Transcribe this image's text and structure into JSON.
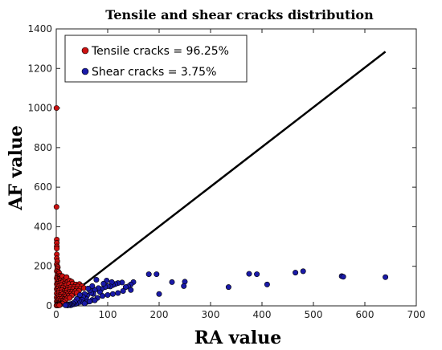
{
  "chart_data": {
    "type": "scatter",
    "title": "Tensile and shear cracks distribution",
    "xlabel": "RA value",
    "ylabel": "AF value",
    "xlim": [
      0,
      700
    ],
    "ylim": [
      0,
      1400
    ],
    "xticks": [
      0,
      100,
      200,
      300,
      400,
      500,
      600,
      700
    ],
    "yticks": [
      0,
      200,
      400,
      600,
      800,
      1000,
      1200,
      1400
    ],
    "legend_position": "top-left",
    "boundary_line": {
      "x": [
        0,
        640
      ],
      "y": [
        0,
        1285
      ],
      "color": "#000000"
    },
    "series": [
      {
        "name": "Tensile cracks = 96.25%",
        "color": "#cc1111",
        "points": [
          [
            0.5,
            1000
          ],
          [
            0.5,
            500
          ],
          [
            1,
            335
          ],
          [
            1,
            318
          ],
          [
            1,
            300
          ],
          [
            1,
            290
          ],
          [
            1,
            260
          ],
          [
            1,
            240
          ],
          [
            2,
            225
          ],
          [
            1,
            210
          ],
          [
            2,
            200
          ],
          [
            3,
            195
          ],
          [
            2,
            185
          ],
          [
            1,
            175
          ],
          [
            4,
            172
          ],
          [
            3,
            160
          ],
          [
            6,
            165
          ],
          [
            2,
            150
          ],
          [
            5,
            148
          ],
          [
            8,
            152
          ],
          [
            1,
            140
          ],
          [
            3,
            135
          ],
          [
            7,
            138
          ],
          [
            10,
            140
          ],
          [
            12,
            150
          ],
          [
            2,
            125
          ],
          [
            5,
            122
          ],
          [
            9,
            128
          ],
          [
            14,
            130
          ],
          [
            18,
            135
          ],
          [
            20,
            145
          ],
          [
            1,
            110
          ],
          [
            4,
            112
          ],
          [
            8,
            115
          ],
          [
            12,
            118
          ],
          [
            16,
            112
          ],
          [
            22,
            120
          ],
          [
            26,
            128
          ],
          [
            30,
            122
          ],
          [
            2,
            98
          ],
          [
            6,
            100
          ],
          [
            10,
            105
          ],
          [
            15,
            100
          ],
          [
            20,
            105
          ],
          [
            25,
            110
          ],
          [
            32,
            112
          ],
          [
            38,
            108
          ],
          [
            45,
            110
          ],
          [
            1,
            85
          ],
          [
            4,
            88
          ],
          [
            9,
            90
          ],
          [
            13,
            92
          ],
          [
            18,
            88
          ],
          [
            23,
            92
          ],
          [
            28,
            95
          ],
          [
            35,
            96
          ],
          [
            42,
            98
          ],
          [
            50,
            100
          ],
          [
            2,
            75
          ],
          [
            6,
            78
          ],
          [
            11,
            80
          ],
          [
            16,
            75
          ],
          [
            21,
            78
          ],
          [
            27,
            82
          ],
          [
            33,
            85
          ],
          [
            40,
            85
          ],
          [
            47,
            88
          ],
          [
            54,
            90
          ],
          [
            1,
            62
          ],
          [
            5,
            65
          ],
          [
            10,
            68
          ],
          [
            15,
            64
          ],
          [
            20,
            66
          ],
          [
            26,
            70
          ],
          [
            31,
            72
          ],
          [
            37,
            74
          ],
          [
            44,
            76
          ],
          [
            3,
            52
          ],
          [
            8,
            55
          ],
          [
            12,
            58
          ],
          [
            17,
            55
          ],
          [
            22,
            58
          ],
          [
            28,
            60
          ],
          [
            34,
            62
          ],
          [
            40,
            65
          ],
          [
            1,
            42
          ],
          [
            5,
            45
          ],
          [
            9,
            46
          ],
          [
            14,
            44
          ],
          [
            19,
            48
          ],
          [
            24,
            50
          ],
          [
            30,
            52
          ],
          [
            2,
            32
          ],
          [
            6,
            35
          ],
          [
            11,
            36
          ],
          [
            16,
            34
          ],
          [
            21,
            38
          ],
          [
            26,
            40
          ],
          [
            1,
            22
          ],
          [
            4,
            24
          ],
          [
            8,
            26
          ],
          [
            13,
            25
          ],
          [
            18,
            28
          ],
          [
            3,
            14
          ],
          [
            7,
            16
          ],
          [
            11,
            15
          ],
          [
            15,
            18
          ],
          [
            2,
            8
          ],
          [
            5,
            9
          ],
          [
            9,
            10
          ],
          [
            12,
            11
          ],
          [
            1,
            4
          ],
          [
            4,
            5
          ],
          [
            7,
            5
          ],
          [
            0.5,
            2
          ],
          [
            3,
            2
          ],
          [
            6,
            3
          ],
          [
            30,
            10
          ],
          [
            35,
            15
          ],
          [
            40,
            20
          ],
          [
            48,
            30
          ],
          [
            55,
            40
          ]
        ]
      },
      {
        "name": "Shear cracks = 3.75%",
        "color": "#1a1aa8",
        "points": [
          [
            640,
            145
          ],
          [
            555,
            150
          ],
          [
            558,
            147
          ],
          [
            480,
            175
          ],
          [
            465,
            168
          ],
          [
            410,
            108
          ],
          [
            390,
            160
          ],
          [
            375,
            162
          ],
          [
            335,
            95
          ],
          [
            250,
            122
          ],
          [
            248,
            100
          ],
          [
            225,
            120
          ],
          [
            200,
            60
          ],
          [
            195,
            160
          ],
          [
            180,
            160
          ],
          [
            150,
            120
          ],
          [
            145,
            108
          ],
          [
            140,
            98
          ],
          [
            135,
            95
          ],
          [
            128,
            118
          ],
          [
            120,
            115
          ],
          [
            115,
            110
          ],
          [
            110,
            105
          ],
          [
            108,
            120
          ],
          [
            105,
            98
          ],
          [
            100,
            100
          ],
          [
            98,
            128
          ],
          [
            95,
            95
          ],
          [
            92,
            112
          ],
          [
            88,
            85
          ],
          [
            85,
            70
          ],
          [
            82,
            90
          ],
          [
            78,
            132
          ],
          [
            75,
            80
          ],
          [
            72,
            60
          ],
          [
            70,
            100
          ],
          [
            68,
            65
          ],
          [
            65,
            78
          ],
          [
            62,
            88
          ],
          [
            60,
            52
          ],
          [
            58,
            35
          ],
          [
            55,
            60
          ],
          [
            52,
            45
          ],
          [
            50,
            30
          ],
          [
            48,
            20
          ],
          [
            46,
            55
          ],
          [
            44,
            25
          ],
          [
            42,
            15
          ],
          [
            40,
            35
          ],
          [
            38,
            10
          ],
          [
            36,
            20
          ],
          [
            34,
            8
          ],
          [
            32,
            12
          ],
          [
            30,
            5
          ],
          [
            28,
            3
          ],
          [
            26,
            8
          ],
          [
            24,
            5
          ],
          [
            22,
            2
          ],
          [
            20,
            6
          ],
          [
            18,
            3
          ],
          [
            60,
            20
          ],
          [
            70,
            30
          ],
          [
            80,
            40
          ],
          [
            90,
            50
          ],
          [
            100,
            55
          ],
          [
            110,
            60
          ],
          [
            120,
            65
          ],
          [
            130,
            75
          ],
          [
            145,
            80
          ],
          [
            55,
            12
          ],
          [
            65,
            22
          ],
          [
            75,
            28
          ]
        ]
      }
    ]
  }
}
